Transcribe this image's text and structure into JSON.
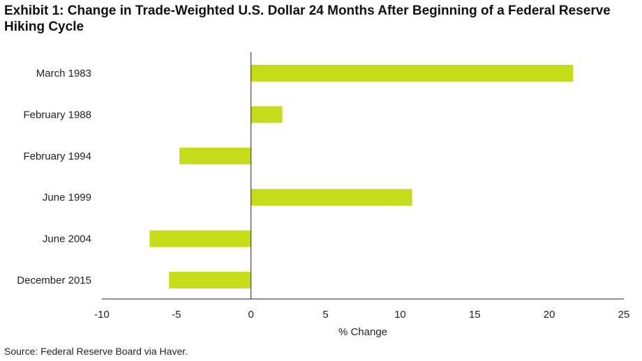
{
  "title": "Exhibit 1: Change in Trade-Weighted U.S. Dollar 24 Months After Beginning of a Federal Reserve Hiking Cycle",
  "source": "Source: Federal Reserve Board via Haver.",
  "colors": {
    "bar": "#c5dc1a",
    "axis": "#222222"
  },
  "chart_data": {
    "type": "bar",
    "orientation": "horizontal",
    "categories": [
      "March  1983",
      "February 1988",
      "February 1994",
      "June 1999",
      "June 2004",
      "December 2015"
    ],
    "values": [
      21.6,
      2.1,
      -4.8,
      10.8,
      -6.8,
      -5.5
    ],
    "xlabel": "% Change",
    "ylabel": "",
    "xlim": [
      -10,
      25
    ],
    "xticks": [
      "-10",
      "-5",
      "0",
      "5",
      "10",
      "15",
      "20",
      "25"
    ],
    "grid": false,
    "legend": "none"
  }
}
